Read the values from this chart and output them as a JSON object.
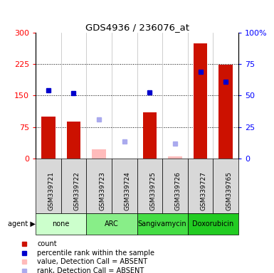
{
  "title": "GDS4936 / 236076_at",
  "samples": [
    "GSM339721",
    "GSM339722",
    "GSM339723",
    "GSM339724",
    "GSM339725",
    "GSM339726",
    "GSM339727",
    "GSM339765"
  ],
  "agents": [
    {
      "name": "none",
      "samples": [
        0,
        1
      ],
      "color": "#ccffcc"
    },
    {
      "name": "ARC",
      "samples": [
        2,
        3
      ],
      "color": "#88ee88"
    },
    {
      "name": "Sangivamycin",
      "samples": [
        4,
        5
      ],
      "color": "#44dd44"
    },
    {
      "name": "Doxorubicin",
      "samples": [
        6,
        7
      ],
      "color": "#22cc22"
    }
  ],
  "bar_values": [
    100,
    88,
    null,
    null,
    110,
    null,
    275,
    223
  ],
  "bar_absent_values": [
    null,
    null,
    22,
    null,
    null,
    5,
    null,
    null
  ],
  "rank_present": [
    163,
    155,
    null,
    null,
    157,
    null,
    207,
    183
  ],
  "rank_absent": [
    null,
    null,
    93,
    40,
    null,
    35,
    null,
    null
  ],
  "ylim_left": [
    0,
    300
  ],
  "ylim_right": [
    0,
    100
  ],
  "yticks_left": [
    0,
    75,
    150,
    225,
    300
  ],
  "yticks_right": [
    0,
    25,
    50,
    75,
    100
  ],
  "ytick_labels_left": [
    "0",
    "75",
    "150",
    "225",
    "300"
  ],
  "ytick_labels_right": [
    "0",
    "25",
    "50",
    "75",
    "100%"
  ],
  "bar_color": "#cc1100",
  "bar_absent_color": "#ffbbbb",
  "rank_present_color": "#0000cc",
  "rank_absent_color": "#aaaaee",
  "legend_items": [
    {
      "color": "#cc1100",
      "label": "count",
      "marker": "s"
    },
    {
      "color": "#0000cc",
      "label": "percentile rank within the sample",
      "marker": "s"
    },
    {
      "color": "#ffbbbb",
      "label": "value, Detection Call = ABSENT",
      "marker": "s"
    },
    {
      "color": "#aaaaee",
      "label": "rank, Detection Call = ABSENT",
      "marker": "s"
    }
  ],
  "agent_label": "agent",
  "agent_colors": [
    "#ccffcc",
    "#88ee88",
    "#44dd44",
    "#22cc22"
  ]
}
